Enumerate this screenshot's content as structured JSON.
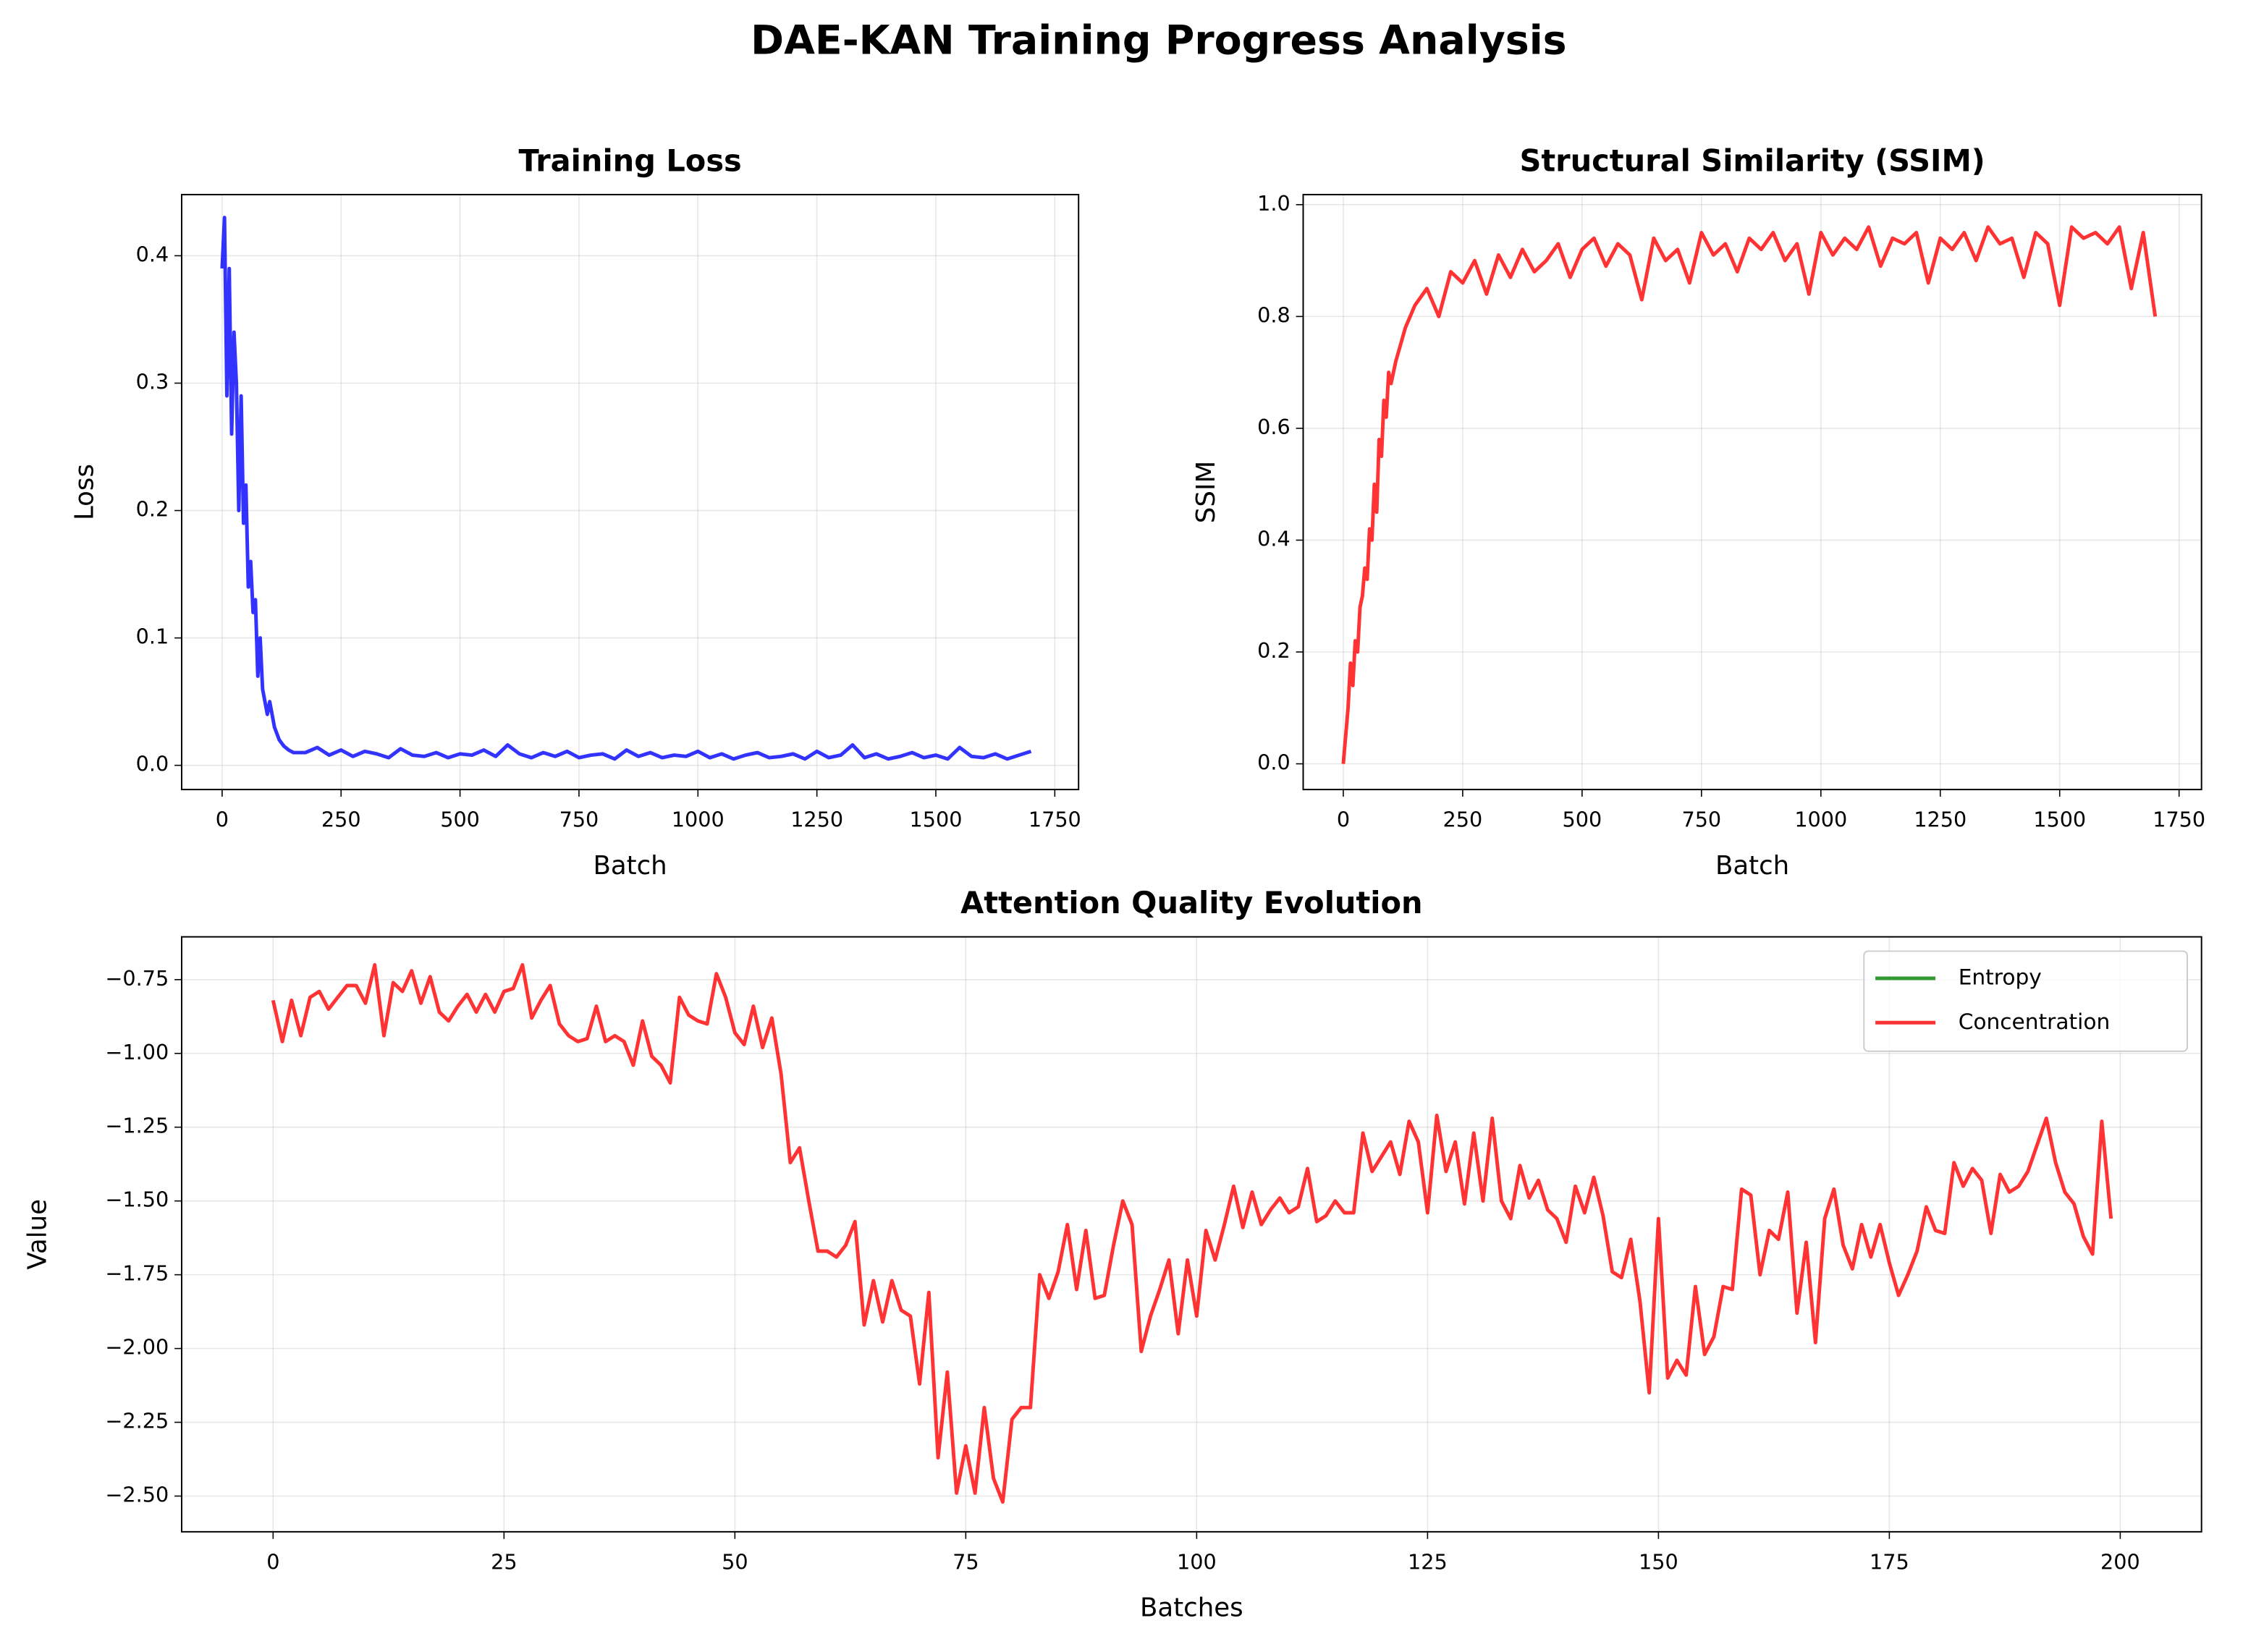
{
  "title": "DAE-KAN Training Progress Analysis",
  "chart_data": [
    {
      "type": "line",
      "title": "Training Loss",
      "xlabel": "Batch",
      "ylabel": "Loss",
      "color": "#0000ff",
      "grid": true,
      "xlim": [
        -85,
        1800
      ],
      "ylim": [
        -0.019,
        0.448
      ],
      "xticks": [
        0,
        250,
        500,
        750,
        1000,
        1250,
        1500,
        1750
      ],
      "yticks": [
        {
          "value": 0,
          "label": "0.0"
        },
        {
          "value": 0.1,
          "label": "0.1"
        },
        {
          "value": 0.2,
          "label": "0.2"
        },
        {
          "value": 0.3,
          "label": "0.3"
        },
        {
          "value": 0.4,
          "label": "0.4"
        }
      ],
      "x": [
        0,
        5,
        10,
        15,
        20,
        25,
        30,
        35,
        40,
        45,
        50,
        55,
        60,
        65,
        70,
        75,
        80,
        85,
        90,
        95,
        100,
        110,
        120,
        130,
        140,
        150,
        175,
        200,
        225,
        250,
        275,
        300,
        325,
        350,
        375,
        400,
        425,
        450,
        475,
        500,
        525,
        550,
        575,
        600,
        625,
        650,
        675,
        700,
        725,
        750,
        775,
        800,
        825,
        850,
        875,
        900,
        925,
        950,
        975,
        1000,
        1025,
        1050,
        1075,
        1100,
        1125,
        1150,
        1175,
        1200,
        1225,
        1250,
        1275,
        1300,
        1325,
        1350,
        1375,
        1400,
        1425,
        1450,
        1475,
        1500,
        1525,
        1550,
        1575,
        1600,
        1625,
        1650,
        1675,
        1700
      ],
      "values": [
        0.39,
        0.43,
        0.29,
        0.39,
        0.26,
        0.34,
        0.3,
        0.2,
        0.29,
        0.19,
        0.22,
        0.14,
        0.16,
        0.12,
        0.13,
        0.07,
        0.1,
        0.06,
        0.05,
        0.04,
        0.05,
        0.03,
        0.02,
        0.015,
        0.012,
        0.01,
        0.01,
        0.014,
        0.008,
        0.012,
        0.007,
        0.011,
        0.009,
        0.006,
        0.013,
        0.008,
        0.007,
        0.01,
        0.006,
        0.009,
        0.008,
        0.012,
        0.007,
        0.016,
        0.009,
        0.006,
        0.01,
        0.007,
        0.011,
        0.006,
        0.008,
        0.009,
        0.005,
        0.012,
        0.007,
        0.01,
        0.006,
        0.008,
        0.007,
        0.011,
        0.006,
        0.009,
        0.005,
        0.008,
        0.01,
        0.006,
        0.007,
        0.009,
        0.005,
        0.011,
        0.006,
        0.008,
        0.016,
        0.006,
        0.009,
        0.005,
        0.007,
        0.01,
        0.006,
        0.008,
        0.005,
        0.014,
        0.007,
        0.006,
        0.009,
        0.005,
        0.008,
        0.011
      ]
    },
    {
      "type": "line",
      "title": "Structural Similarity (SSIM)",
      "xlabel": "Batch",
      "ylabel": "SSIM",
      "color": "#ff0000",
      "grid": true,
      "xlim": [
        -84,
        1797
      ],
      "ylim": [
        -0.046,
        1.018
      ],
      "xticks": [
        0,
        250,
        500,
        750,
        1000,
        1250,
        1500,
        1750
      ],
      "yticks": [
        {
          "value": 0,
          "label": "0.0"
        },
        {
          "value": 0.2,
          "label": "0.2"
        },
        {
          "value": 0.4,
          "label": "0.4"
        },
        {
          "value": 0.6,
          "label": "0.6"
        },
        {
          "value": 0.8,
          "label": "0.8"
        },
        {
          "value": 1,
          "label": "1.0"
        }
      ],
      "x": [
        0,
        5,
        10,
        15,
        20,
        25,
        30,
        35,
        40,
        45,
        50,
        55,
        60,
        65,
        70,
        75,
        80,
        85,
        90,
        95,
        100,
        110,
        120,
        130,
        140,
        150,
        175,
        200,
        225,
        250,
        275,
        300,
        325,
        350,
        375,
        400,
        425,
        450,
        475,
        500,
        525,
        550,
        575,
        600,
        625,
        650,
        675,
        700,
        725,
        750,
        775,
        800,
        825,
        850,
        875,
        900,
        925,
        950,
        975,
        1000,
        1025,
        1050,
        1075,
        1100,
        1125,
        1150,
        1175,
        1200,
        1225,
        1250,
        1275,
        1300,
        1325,
        1350,
        1375,
        1400,
        1425,
        1450,
        1475,
        1500,
        1525,
        1550,
        1575,
        1600,
        1625,
        1650,
        1675,
        1700
      ],
      "values": [
        0.0,
        0.05,
        0.1,
        0.18,
        0.14,
        0.22,
        0.2,
        0.28,
        0.3,
        0.35,
        0.33,
        0.42,
        0.4,
        0.5,
        0.45,
        0.58,
        0.55,
        0.65,
        0.62,
        0.7,
        0.68,
        0.72,
        0.75,
        0.78,
        0.8,
        0.82,
        0.85,
        0.8,
        0.88,
        0.86,
        0.9,
        0.84,
        0.91,
        0.87,
        0.92,
        0.88,
        0.9,
        0.93,
        0.87,
        0.92,
        0.94,
        0.89,
        0.93,
        0.91,
        0.83,
        0.94,
        0.9,
        0.92,
        0.86,
        0.95,
        0.91,
        0.93,
        0.88,
        0.94,
        0.92,
        0.95,
        0.9,
        0.93,
        0.84,
        0.95,
        0.91,
        0.94,
        0.92,
        0.96,
        0.89,
        0.94,
        0.93,
        0.95,
        0.86,
        0.94,
        0.92,
        0.95,
        0.9,
        0.96,
        0.93,
        0.94,
        0.87,
        0.95,
        0.93,
        0.82,
        0.96,
        0.94,
        0.95,
        0.93,
        0.96,
        0.85,
        0.95,
        0.8
      ]
    },
    {
      "type": "line",
      "title": "Attention Quality Evolution",
      "xlabel": "Batches",
      "ylabel": "Value",
      "grid": true,
      "legend": "upper right",
      "xlim": [
        -9.9,
        208.8
      ],
      "ylim": [
        -2.621,
        -0.605
      ],
      "xticks": [
        0,
        25,
        50,
        75,
        100,
        125,
        150,
        175,
        200
      ],
      "yticks": [
        {
          "value": -2.5,
          "label": "−2.50"
        },
        {
          "value": -2.25,
          "label": "−2.25"
        },
        {
          "value": -2,
          "label": "−2.00"
        },
        {
          "value": -1.75,
          "label": "−1.75"
        },
        {
          "value": -1.5,
          "label": "−1.50"
        },
        {
          "value": -1.25,
          "label": "−1.25"
        },
        {
          "value": -1,
          "label": "−1.00"
        },
        {
          "value": -0.75,
          "label": "−0.75"
        }
      ],
      "x": [
        0,
        1,
        2,
        3,
        4,
        5,
        6,
        7,
        8,
        9,
        10,
        11,
        12,
        13,
        14,
        15,
        16,
        17,
        18,
        19,
        20,
        21,
        22,
        23,
        24,
        25,
        26,
        27,
        28,
        29,
        30,
        31,
        32,
        33,
        34,
        35,
        36,
        37,
        38,
        39,
        40,
        41,
        42,
        43,
        44,
        45,
        46,
        47,
        48,
        49,
        50,
        51,
        52,
        53,
        54,
        55,
        56,
        57,
        58,
        59,
        60,
        61,
        62,
        63,
        64,
        65,
        66,
        67,
        68,
        69,
        70,
        71,
        72,
        73,
        74,
        75,
        76,
        77,
        78,
        79,
        80,
        81,
        82,
        83,
        84,
        85,
        86,
        87,
        88,
        89,
        90,
        91,
        92,
        93,
        94,
        95,
        96,
        97,
        98,
        99,
        100,
        101,
        102,
        103,
        104,
        105,
        106,
        107,
        108,
        109,
        110,
        111,
        112,
        113,
        114,
        115,
        116,
        117,
        118,
        119,
        120,
        121,
        122,
        123,
        124,
        125,
        126,
        127,
        128,
        129,
        130,
        131,
        132,
        133,
        134,
        135,
        136,
        137,
        138,
        139,
        140,
        141,
        142,
        143,
        144,
        145,
        146,
        147,
        148,
        149,
        150,
        151,
        152,
        153,
        154,
        155,
        156,
        157,
        158,
        159,
        160,
        161,
        162,
        163,
        164,
        165,
        166,
        167,
        168,
        169,
        170,
        171,
        172,
        173,
        174,
        175,
        176,
        177,
        178,
        179,
        180,
        181,
        182,
        183,
        184,
        185,
        186,
        187,
        188,
        189,
        190,
        191,
        192,
        193,
        194,
        195,
        196,
        197,
        198,
        199
      ],
      "series": [
        {
          "name": "Entropy",
          "color": "#008000",
          "values": [
            null,
            null,
            null,
            null,
            null,
            null,
            null,
            null,
            null,
            null,
            null,
            null,
            null,
            null,
            null,
            null,
            null,
            null,
            null,
            null,
            null,
            null,
            null,
            null,
            null,
            null,
            null,
            null,
            null,
            null,
            null,
            null,
            null,
            null,
            null,
            null,
            null,
            null,
            null,
            null,
            null,
            null,
            null,
            null,
            null,
            null,
            null,
            null,
            null,
            null,
            null,
            null,
            null,
            null,
            null,
            null,
            null,
            null,
            null,
            null,
            null,
            null,
            null,
            null,
            null,
            null,
            null,
            null,
            null,
            null,
            null,
            null,
            null,
            null,
            null,
            null,
            null,
            null,
            null,
            null,
            null,
            null,
            null,
            null,
            null,
            null,
            null,
            null,
            null,
            null,
            null,
            null,
            null,
            null,
            null,
            null,
            null,
            null,
            null,
            null,
            null,
            null,
            null,
            null,
            null,
            null,
            null,
            null,
            null,
            null,
            null,
            null,
            null,
            null,
            null,
            null,
            null,
            null,
            null,
            null,
            null,
            null,
            null,
            null,
            null,
            null,
            null,
            null,
            null,
            null,
            null,
            null,
            null,
            null,
            null,
            null,
            null,
            null,
            null,
            null,
            null,
            null,
            null,
            null,
            null,
            null,
            null,
            null,
            null,
            null,
            null,
            null,
            null,
            null,
            null,
            null,
            null,
            null,
            null,
            null,
            null,
            null,
            null,
            null,
            null,
            null,
            null,
            null,
            null,
            null,
            null,
            null,
            null,
            null,
            null,
            null,
            null,
            null,
            null,
            null,
            null,
            null,
            null,
            null,
            null,
            null,
            null,
            null,
            null,
            null,
            null,
            null,
            null,
            null,
            null,
            null,
            null,
            null,
            null,
            null
          ]
        },
        {
          "name": "Concentration",
          "color": "#ff0000",
          "values": [
            -0.82,
            -0.96,
            -0.82,
            -0.94,
            -0.81,
            -0.79,
            -0.85,
            -0.81,
            -0.77,
            -0.77,
            -0.83,
            -0.7,
            -0.94,
            -0.76,
            -0.79,
            -0.72,
            -0.83,
            -0.74,
            -0.86,
            -0.89,
            -0.84,
            -0.8,
            -0.86,
            -0.8,
            -0.86,
            -0.79,
            -0.78,
            -0.7,
            -0.88,
            -0.82,
            -0.77,
            -0.9,
            -0.94,
            -0.96,
            -0.95,
            -0.84,
            -0.96,
            -0.94,
            -0.96,
            -1.04,
            -0.89,
            -1.01,
            -1.04,
            -1.1,
            -0.81,
            -0.87,
            -0.89,
            -0.9,
            -0.73,
            -0.81,
            -0.93,
            -0.97,
            -0.84,
            -0.98,
            -0.88,
            -1.07,
            -1.37,
            -1.32,
            -1.5,
            -1.67,
            -1.67,
            -1.69,
            -1.65,
            -1.57,
            -1.92,
            -1.77,
            -1.91,
            -1.77,
            -1.87,
            -1.89,
            -2.12,
            -1.81,
            -2.37,
            -2.08,
            -2.49,
            -2.33,
            -2.49,
            -2.2,
            -2.44,
            -2.52,
            -2.24,
            -2.2,
            -2.2,
            -1.75,
            -1.83,
            -1.74,
            -1.58,
            -1.8,
            -1.6,
            -1.83,
            -1.82,
            -1.65,
            -1.5,
            -1.58,
            -2.01,
            -1.89,
            -1.8,
            -1.7,
            -1.95,
            -1.7,
            -1.89,
            -1.6,
            -1.7,
            -1.58,
            -1.45,
            -1.59,
            -1.47,
            -1.58,
            -1.53,
            -1.49,
            -1.54,
            -1.52,
            -1.39,
            -1.57,
            -1.55,
            -1.5,
            -1.54,
            -1.54,
            -1.27,
            -1.4,
            -1.35,
            -1.3,
            -1.41,
            -1.23,
            -1.3,
            -1.54,
            -1.21,
            -1.4,
            -1.3,
            -1.51,
            -1.27,
            -1.5,
            -1.22,
            -1.5,
            -1.56,
            -1.38,
            -1.49,
            -1.43,
            -1.53,
            -1.56,
            -1.64,
            -1.45,
            -1.54,
            -1.42,
            -1.55,
            -1.74,
            -1.76,
            -1.63,
            -1.84,
            -2.15,
            -1.56,
            -2.1,
            -2.04,
            -2.09,
            -1.79,
            -2.02,
            -1.96,
            -1.79,
            -1.8,
            -1.46,
            -1.48,
            -1.75,
            -1.6,
            -1.63,
            -1.47,
            -1.88,
            -1.64,
            -1.98,
            -1.56,
            -1.46,
            -1.65,
            -1.73,
            -1.58,
            -1.69,
            -1.58,
            -1.71,
            -1.82,
            -1.75,
            -1.67,
            -1.52,
            -1.6,
            -1.61,
            -1.37,
            -1.45,
            -1.39,
            -1.43,
            -1.61,
            -1.41,
            -1.47,
            -1.45,
            -1.4,
            -1.31,
            -1.22,
            -1.37,
            -1.47,
            -1.51,
            -1.62,
            -1.68,
            -1.23,
            -1.56
          ]
        }
      ]
    }
  ]
}
